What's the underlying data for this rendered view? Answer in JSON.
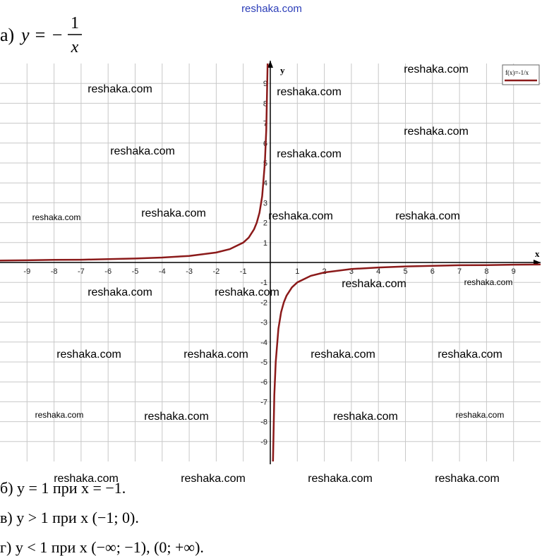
{
  "header": {
    "site": "reshaka.com",
    "label": "а)",
    "lhs": "y = −",
    "numerator": "1",
    "denominator": "x"
  },
  "chart_data": {
    "type": "line",
    "x_label": "x",
    "y_label": "y",
    "legend": true,
    "grid": true,
    "xlim": [
      -10,
      10
    ],
    "ylim": [
      -10,
      10
    ],
    "xticks": [
      -9,
      -8,
      -7,
      -6,
      -5,
      -4,
      -3,
      -2,
      -1,
      1,
      2,
      3,
      4,
      5,
      6,
      7,
      8,
      9
    ],
    "yticks": [
      -9,
      -8,
      -7,
      -6,
      -5,
      -4,
      -3,
      -2,
      -1,
      1,
      2,
      3,
      4,
      5,
      6,
      7,
      8,
      9
    ],
    "x": [
      -10,
      -9,
      -8,
      -7,
      -6,
      -5,
      -4,
      -3,
      -2,
      -1.5,
      -1,
      -0.8,
      -0.6,
      -0.5,
      -0.4,
      -0.3,
      -0.2,
      -0.15,
      -0.1,
      0,
      0.1,
      0.15,
      0.2,
      0.3,
      0.4,
      0.5,
      0.6,
      0.8,
      1,
      1.5,
      2,
      3,
      4,
      5,
      6,
      7,
      8,
      9,
      10
    ],
    "series": [
      {
        "name": "f(x)=-1/x",
        "color": "#8b1a1a",
        "values": [
          0.1,
          0.11,
          0.13,
          0.14,
          0.17,
          0.2,
          0.25,
          0.33,
          0.5,
          0.67,
          1,
          1.25,
          1.67,
          2,
          2.5,
          3.33,
          5,
          6.67,
          10,
          null,
          -10,
          -6.67,
          -5,
          -3.33,
          -2.5,
          -2,
          -1.67,
          -1.25,
          -1,
          -0.67,
          -0.5,
          -0.33,
          -0.25,
          -0.2,
          -0.17,
          -0.14,
          -0.13,
          -0.11,
          -0.1
        ]
      }
    ]
  },
  "watermarks": [
    "reshaka.com",
    "reshaka.com",
    "reshaka.com",
    "reshaka.com",
    "reshaka.com",
    "reshaka.com",
    "reshaka.com",
    "reshaka.com",
    "reshaka.com",
    "reshaka.com",
    "reshaka.com",
    "reshaka.com",
    "reshaka.com",
    "reshaka.com",
    "reshaka.com",
    "reshaka.com",
    "reshaka.com",
    "reshaka.com",
    "reshaka.com",
    "reshaka.com",
    "reshaka.com",
    "reshaka.com",
    "reshaka.com",
    "reshaka.com",
    "reshaka.com",
    "reshaka.com"
  ],
  "answers": [
    "б) y = 1 при x = −1.",
    "в) y > 1 при x (−1; 0).",
    "г) y < 1 при x (−∞; −1), (0; +∞)."
  ]
}
